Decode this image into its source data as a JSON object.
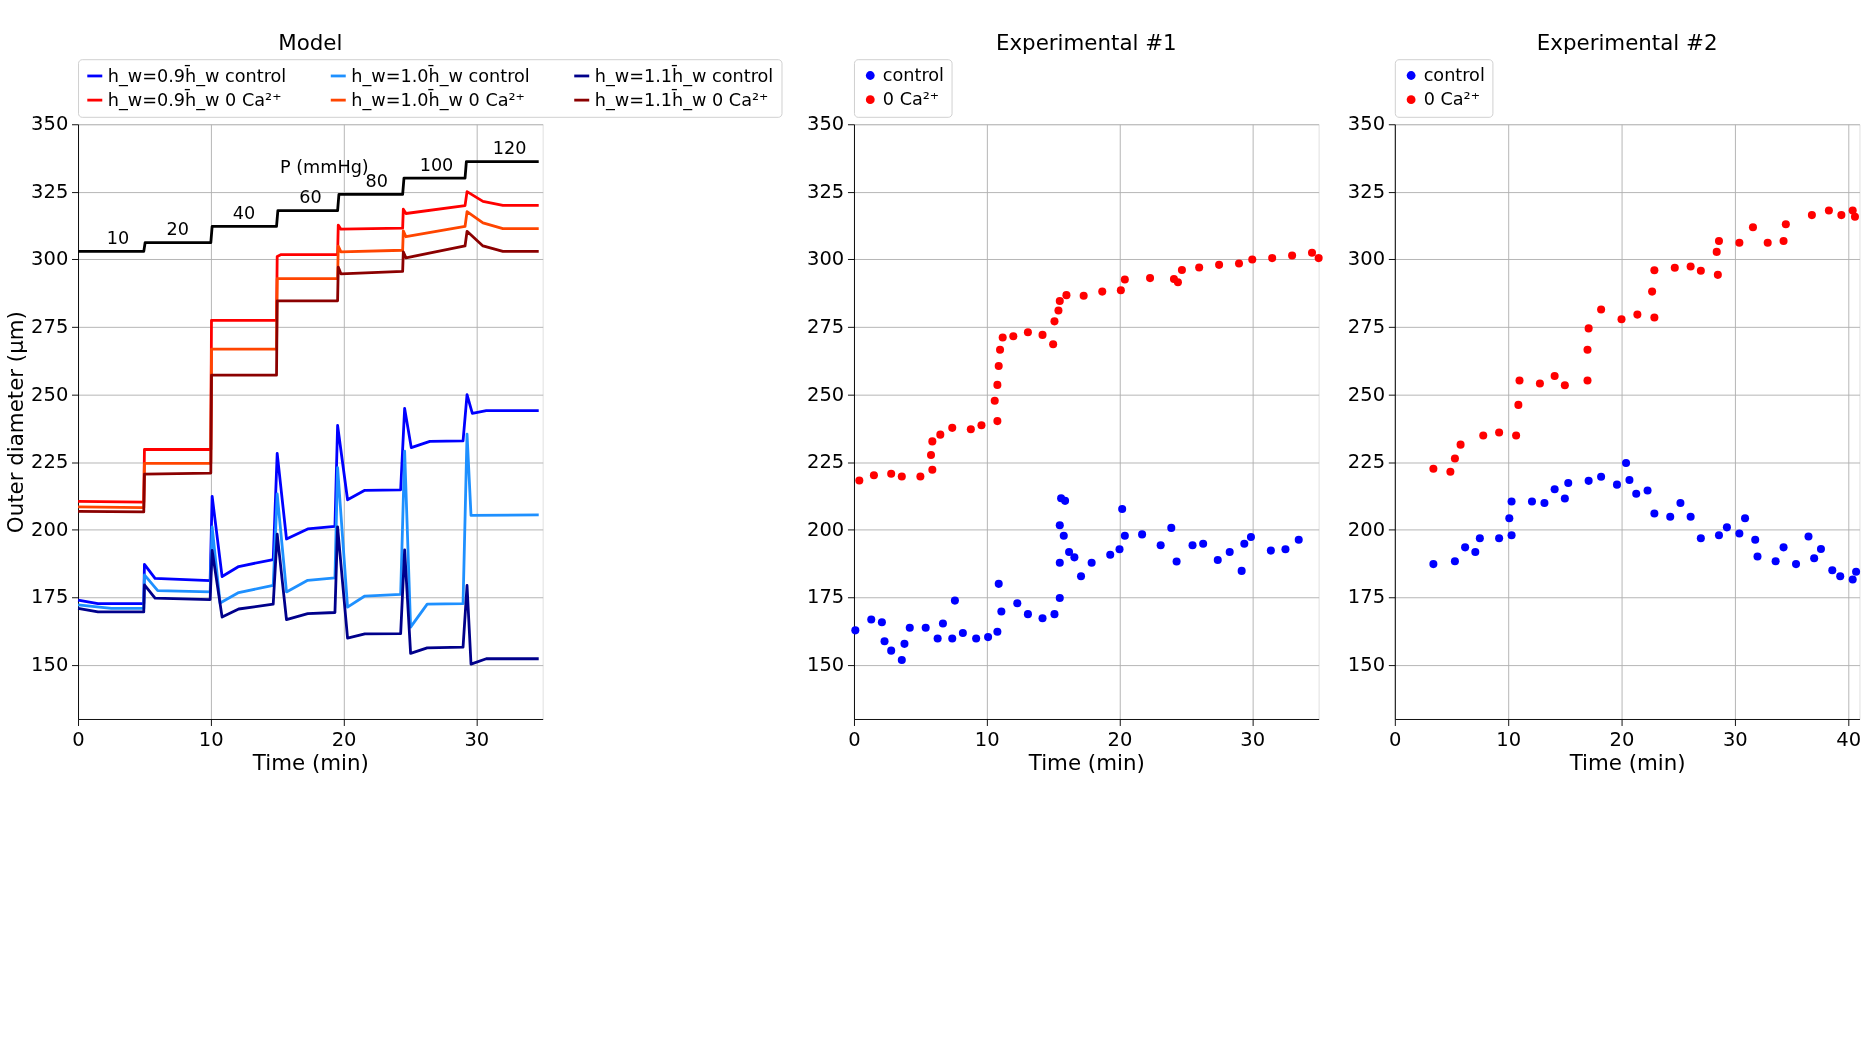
{
  "chart_data": [
    {
      "type": "line",
      "title": "Model",
      "xlabel": "Time (min)",
      "ylabel": "Outer diameter (μm)",
      "xlim": [
        0,
        35
      ],
      "ylim": [
        130,
        350
      ],
      "xticks": [
        0,
        10,
        20,
        30
      ],
      "yticks": [
        150,
        175,
        200,
        225,
        250,
        275,
        300,
        325,
        350
      ],
      "grid": true,
      "legend": "top",
      "line_style": "solid",
      "series": [
        {
          "name": "h_w=0.9h̄_w control",
          "color": "#0000ff",
          "x": [
            0,
            1.5,
            4.95,
            5.0,
            5.8,
            9.95,
            10.1,
            10.85,
            12.1,
            14.7,
            15.0,
            15.7,
            17.3,
            19.35,
            19.55,
            20.3,
            21.6,
            24.3,
            24.6,
            25.1,
            26.5,
            29.0,
            29.3,
            29.7,
            30.75,
            34.7
          ],
          "values": [
            174,
            172.7,
            172.7,
            187.2,
            182,
            181.2,
            212.4,
            182.7,
            186.4,
            189,
            228.3,
            196.6,
            200.3,
            201.3,
            238.6,
            211.1,
            214.6,
            214.8,
            244.9,
            230.4,
            232.7,
            232.9,
            250,
            243.1,
            244.1,
            244.1
          ]
        },
        {
          "name": "h_w=1.0h̄_w control",
          "color": "#1e90ff",
          "x": [
            0,
            2.5,
            4.95,
            5.0,
            6.0,
            9.95,
            10.1,
            10.7,
            12.1,
            14.7,
            15.0,
            15.7,
            17.3,
            19.35,
            19.55,
            20.3,
            21.6,
            24.3,
            24.6,
            25.05,
            26.3,
            29.0,
            29.3,
            29.6,
            34.7
          ],
          "values": [
            172.2,
            170.9,
            170.9,
            183.3,
            177.5,
            177,
            201.1,
            172.9,
            176.8,
            179.4,
            213.3,
            177,
            181.3,
            182.2,
            223,
            171.4,
            175.5,
            176.1,
            229.1,
            164,
            172.5,
            172.7,
            235.4,
            205.3,
            205.5
          ]
        },
        {
          "name": "h_w=1.1h̄_w control",
          "color": "#00008b",
          "x": [
            0,
            1.5,
            4.95,
            5.0,
            5.8,
            9.95,
            10.1,
            10.85,
            12.1,
            14.7,
            15.0,
            15.7,
            17.3,
            19.35,
            19.55,
            20.3,
            21.6,
            24.3,
            24.6,
            25.05,
            26.3,
            29.0,
            29.3,
            29.6,
            30.75,
            34.7
          ],
          "values": [
            170.9,
            169.6,
            169.6,
            179.6,
            174.7,
            174.2,
            192.4,
            167.7,
            170.7,
            172.5,
            198.4,
            166.8,
            169,
            169.4,
            201.1,
            159.9,
            161.5,
            161.6,
            192.6,
            154.3,
            156.3,
            156.6,
            179.4,
            150.3,
            152.3,
            152.3
          ]
        },
        {
          "name": "h_w=0.9h̄_w 0 Ca²⁺",
          "color": "#ff0000",
          "x": [
            0,
            4.95,
            5.0,
            10.0,
            10.05,
            14.95,
            15.0,
            15.3,
            19.55,
            19.6,
            19.8,
            24.45,
            24.5,
            24.7,
            29.15,
            29.3,
            30.5,
            32,
            34.7
          ],
          "values": [
            210.5,
            210.2,
            229.7,
            229.7,
            277.5,
            277.5,
            301.1,
            301.8,
            301.8,
            312.7,
            311.2,
            311.6,
            318.6,
            317,
            319.9,
            325.1,
            321.5,
            320,
            320
          ]
        },
        {
          "name": "h_w=1.0h̄_w 0 Ca²⁺",
          "color": "#ff4500",
          "x": [
            0,
            4.95,
            5.0,
            10.0,
            10.05,
            14.95,
            15.0,
            15.3,
            19.55,
            19.6,
            19.8,
            24.45,
            24.5,
            24.7,
            29.15,
            29.3,
            30.5,
            32,
            34.7
          ],
          "values": [
            208.5,
            208.2,
            224.6,
            224.6,
            266.8,
            266.8,
            292.9,
            292.9,
            292.9,
            304.9,
            302.8,
            303.4,
            310.6,
            308.4,
            312.2,
            317.7,
            313.5,
            311.4,
            311.4
          ]
        },
        {
          "name": "h_w=1.1h̄_w 0 Ca²⁺",
          "color": "#8b0000",
          "x": [
            0,
            4.95,
            5.0,
            10.0,
            10.05,
            14.95,
            15.0,
            15.3,
            19.55,
            19.6,
            19.8,
            24.45,
            24.5,
            24.7,
            29.15,
            29.3,
            30.5,
            32,
            34.7
          ],
          "values": [
            206.8,
            206.6,
            220.6,
            221,
            257.2,
            257.2,
            284.7,
            284.7,
            284.7,
            297.2,
            294.7,
            295.6,
            302.8,
            300.6,
            305,
            310.4,
            305,
            303,
            303
          ]
        },
        {
          "color": "#000000",
          "x": [
            0,
            4.95,
            5.05,
            10.0,
            10.1,
            14.95,
            15.05,
            19.55,
            19.65,
            24.45,
            24.55,
            29.15,
            29.25,
            34.7
          ],
          "values": [
            303,
            303,
            306.2,
            306.2,
            312.2,
            312.2,
            318.1,
            318.1,
            324.1,
            324.1,
            330.1,
            330.1,
            336.2,
            336.2
          ]
        }
      ],
      "annotations": [
        "P (mmHg)",
        {
          "text": "10",
          "x": 3,
          "y": 303
        },
        {
          "text": "20",
          "x": 7.5,
          "y": 306.2
        },
        {
          "text": "40",
          "x": 12.5,
          "y": 312.2
        },
        {
          "text": "60",
          "x": 17.5,
          "y": 318.1
        },
        {
          "text": "80",
          "x": 22.5,
          "y": 324.1
        },
        {
          "text": "100",
          "x": 27,
          "y": 330.1
        },
        {
          "text": "120",
          "x": 32.5,
          "y": 336.2
        }
      ]
    },
    {
      "type": "scatter",
      "title": "Experimental #1",
      "xlabel": "Time (min)",
      "xlim": [
        0,
        35
      ],
      "ylim": [
        130,
        350
      ],
      "xticks": [
        0,
        10,
        20,
        30
      ],
      "yticks": [
        150,
        175,
        200,
        225,
        250,
        275,
        300,
        325,
        350
      ],
      "grid": true,
      "legend": "top",
      "marker": "circle",
      "series": [
        {
          "name": "control",
          "color": "#0000ff",
          "x": [
            0.1,
            1.3,
            2.1,
            2.3,
            2.8,
            3.6,
            3.8,
            4.2,
            5.4,
            6.3,
            6.7,
            7.4,
            7.6,
            8.2,
            9.2,
            10.1,
            10.8,
            10.9,
            11.1,
            12.3,
            13.1,
            14.2,
            15.1,
            15.5,
            15.5,
            15.5,
            15.6,
            15.9,
            15.8,
            16.2,
            16.6,
            17.1,
            17.9,
            19.3,
            20.0,
            20.2,
            20.4,
            21.7,
            23.1,
            23.9,
            24.3,
            25.5,
            26.3,
            27.4,
            28.3,
            29.2,
            29.4,
            29.9,
            31.4,
            32.5,
            33.5
          ],
          "values": [
            162.8,
            166.8,
            165.8,
            158.8,
            155.3,
            151.8,
            157.8,
            163.8,
            163.8,
            159.8,
            165.3,
            159.8,
            173.8,
            161.8,
            159.8,
            160.3,
            162.3,
            180,
            169.8,
            172.8,
            168.8,
            167.3,
            168.8,
            174.8,
            187.8,
            201.7,
            211.7,
            210.7,
            197.8,
            191.8,
            189.8,
            182.8,
            187.8,
            190.8,
            192.8,
            207.7,
            197.8,
            198.3,
            194.3,
            200.7,
            188.3,
            194.3,
            194.8,
            188.8,
            191.8,
            184.8,
            194.8,
            197.3,
            192.3,
            192.8,
            196.3
          ]
        },
        {
          "name": "0 Ca²⁺",
          "color": "#ff0000",
          "x": [
            0.4,
            1.5,
            2.8,
            3.6,
            5.0,
            5.9,
            5.8,
            5.9,
            6.5,
            7.4,
            8.8,
            9.6,
            10.8,
            10.6,
            10.8,
            10.9,
            11.0,
            11.2,
            12.0,
            13.1,
            14.2,
            15.0,
            15.1,
            15.4,
            15.5,
            16.0,
            17.3,
            18.7,
            20.1,
            20.4,
            22.3,
            24.1,
            24.4,
            24.7,
            26,
            27.5,
            29,
            30,
            31.5,
            33,
            34.5,
            35
          ],
          "values": [
            218.2,
            220.2,
            220.7,
            219.7,
            219.7,
            222.2,
            227.7,
            232.7,
            235.2,
            237.7,
            237.2,
            238.7,
            240.2,
            247.7,
            253.6,
            260.6,
            266.6,
            271.1,
            271.6,
            273.1,
            272.1,
            268.6,
            277.1,
            281.1,
            284.6,
            286.8,
            286.6,
            288.1,
            288.6,
            292.6,
            293.1,
            292.8,
            291.6,
            296.1,
            297,
            298,
            298.5,
            300,
            300.5,
            301.5,
            302.5,
            300.5
          ]
        }
      ]
    },
    {
      "type": "scatter",
      "title": "Experimental #2",
      "xlabel": "Time (min)",
      "xlim": [
        0,
        41
      ],
      "ylim": [
        130,
        350
      ],
      "xticks": [
        0,
        10,
        20,
        30,
        40
      ],
      "yticks": [
        150,
        175,
        200,
        225,
        250,
        275,
        300,
        325,
        350
      ],
      "grid": true,
      "legend": "top",
      "marker": "circle",
      "series": [
        {
          "name": "control",
          "color": "#0000ff",
          "x": [
            3.4,
            5.3,
            6.2,
            7.1,
            7.5,
            9.2,
            10.3,
            10.1,
            10.3,
            12.1,
            13.2,
            14.1,
            15.0,
            15.3,
            17.1,
            18.2,
            19.6,
            20.4,
            20.7,
            21.3,
            22.3,
            22.9,
            24.3,
            25.2,
            26.1,
            27.0,
            28.6,
            29.3,
            30.4,
            30.9,
            31.8,
            32.0,
            33.6,
            34.3,
            35.4,
            36.5,
            37.0,
            37.6,
            38.6,
            39.3,
            40.4,
            40.7
          ],
          "values": [
            187.3,
            188.4,
            193.5,
            191.8,
            196.9,
            196.9,
            198,
            204.3,
            210.5,
            210.5,
            209.9,
            215,
            211.6,
            217.3,
            218.1,
            219.6,
            216.7,
            224.7,
            218.4,
            213.3,
            214.5,
            206,
            204.8,
            209.9,
            204.8,
            196.9,
            198,
            200.9,
            198.6,
            204.3,
            196.3,
            190.1,
            188.4,
            193.5,
            187.3,
            197.5,
            189.5,
            192.9,
            185,
            182.8,
            181.6,
            184.5
          ]
        },
        {
          "name": "0 Ca²⁺",
          "color": "#ff0000",
          "x": [
            3.4,
            4.9,
            5.3,
            5.8,
            7.8,
            9.2,
            10.7,
            10.9,
            11.0,
            12.8,
            14.1,
            15.0,
            17.0,
            17.0,
            17.1,
            18.2,
            20.0,
            21.4,
            22.9,
            22.7,
            22.9,
            24.7,
            26.1,
            27.0,
            28.5,
            28.4,
            28.6,
            30.4,
            31.6,
            32.9,
            34.3,
            34.5,
            36.8,
            38.3,
            39.4,
            40.4,
            40.6
          ],
          "values": [
            222.6,
            221.5,
            226.4,
            231.5,
            234.9,
            236,
            234.9,
            246.2,
            255.2,
            254.1,
            256.9,
            253.5,
            255.2,
            266.6,
            274.5,
            281.5,
            277.9,
            279.6,
            278.5,
            288.1,
            296,
            296.9,
            297.4,
            295.8,
            294.3,
            302.8,
            306.8,
            306.2,
            311.9,
            306.2,
            306.8,
            313,
            316.4,
            318.1,
            316.4,
            318.1,
            315.8
          ]
        }
      ]
    }
  ]
}
